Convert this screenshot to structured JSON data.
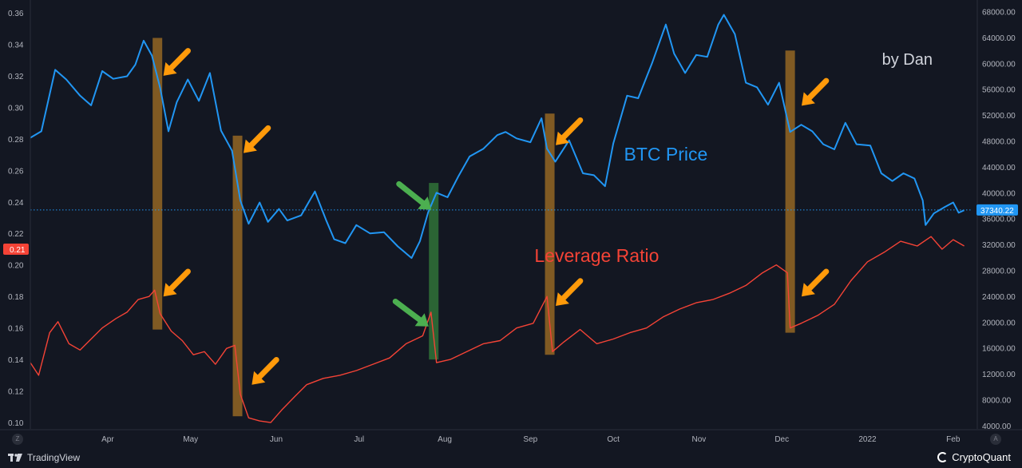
{
  "watermark": "by Dan",
  "brand_left": "TradingView",
  "brand_right": "CryptoQuant",
  "corner_left": "Z",
  "corner_right": "A",
  "colors": {
    "background": "#131722",
    "btc": "#2196f3",
    "leverage": "#f44336",
    "orange_band": "#8a6124",
    "green_band": "#2e6b36",
    "orange_arrow": "#ff9a0a",
    "green_arrow": "#4caf50",
    "axis_text": "#b2b5be",
    "crosshair": "#2196f3"
  },
  "chart_data": {
    "type": "line",
    "x_tick_labels": [
      "Apr",
      "May",
      "Jun",
      "Jul",
      "Aug",
      "Sep",
      "Oct",
      "Nov",
      "Dec",
      "2022",
      "Feb"
    ],
    "x_tick_dates": [
      "2021-04-01",
      "2021-05-01",
      "2021-06-01",
      "2021-07-01",
      "2021-08-01",
      "2021-09-01",
      "2021-10-01",
      "2021-11-01",
      "2021-12-01",
      "2022-01-01",
      "2022-02-01"
    ],
    "xlim": [
      "2021-03-04",
      "2022-02-08"
    ],
    "left_axis": {
      "ylim": [
        0.096,
        0.364
      ],
      "ticks": [
        "0.36",
        "0.34",
        "0.32",
        "0.30",
        "0.28",
        "0.26",
        "0.24",
        "0.22",
        "0.20",
        "0.18",
        "0.16",
        "0.14",
        "0.12",
        "0.10"
      ],
      "current_value_label": "0.21"
    },
    "right_axis": {
      "ylim": [
        3500,
        68800
      ],
      "ticks": [
        "68000.00",
        "64000.00",
        "60000.00",
        "56000.00",
        "52000.00",
        "48000.00",
        "44000.00",
        "40000.00",
        "36000.00",
        "32000.00",
        "28000.00",
        "24000.00",
        "20000.00",
        "16000.00",
        "12000.00",
        "8000.00",
        "4000.00"
      ],
      "current_value_label": "37340.22"
    },
    "series": [
      {
        "name": "BTC Price",
        "axis": "right",
        "points": [
          [
            "2021-03-04",
            48500
          ],
          [
            "2021-03-08",
            49500
          ],
          [
            "2021-03-13",
            59000
          ],
          [
            "2021-03-17",
            57500
          ],
          [
            "2021-03-22",
            55000
          ],
          [
            "2021-03-26",
            53500
          ],
          [
            "2021-03-30",
            58800
          ],
          [
            "2021-04-03",
            57600
          ],
          [
            "2021-04-08",
            58000
          ],
          [
            "2021-04-11",
            59800
          ],
          [
            "2021-04-14",
            63500
          ],
          [
            "2021-04-17",
            61200
          ],
          [
            "2021-04-20",
            56200
          ],
          [
            "2021-04-23",
            49500
          ],
          [
            "2021-04-26",
            54000
          ],
          [
            "2021-04-30",
            57500
          ],
          [
            "2021-05-04",
            54200
          ],
          [
            "2021-05-08",
            58500
          ],
          [
            "2021-05-12",
            49600
          ],
          [
            "2021-05-16",
            46500
          ],
          [
            "2021-05-19",
            38800
          ],
          [
            "2021-05-22",
            35200
          ],
          [
            "2021-05-26",
            38500
          ],
          [
            "2021-05-29",
            35500
          ],
          [
            "2021-06-02",
            37500
          ],
          [
            "2021-06-05",
            35700
          ],
          [
            "2021-06-10",
            36500
          ],
          [
            "2021-06-15",
            40200
          ],
          [
            "2021-06-19",
            35800
          ],
          [
            "2021-06-22",
            32800
          ],
          [
            "2021-06-26",
            32200
          ],
          [
            "2021-06-30",
            35000
          ],
          [
            "2021-07-05",
            33700
          ],
          [
            "2021-07-10",
            33900
          ],
          [
            "2021-07-15",
            31700
          ],
          [
            "2021-07-20",
            29900
          ],
          [
            "2021-07-23",
            32500
          ],
          [
            "2021-07-26",
            37000
          ],
          [
            "2021-07-29",
            40000
          ],
          [
            "2021-08-02",
            39300
          ],
          [
            "2021-08-06",
            42600
          ],
          [
            "2021-08-10",
            45600
          ],
          [
            "2021-08-15",
            46800
          ],
          [
            "2021-08-20",
            48900
          ],
          [
            "2021-08-23",
            49400
          ],
          [
            "2021-08-27",
            48400
          ],
          [
            "2021-09-01",
            47800
          ],
          [
            "2021-09-05",
            51500
          ],
          [
            "2021-09-07",
            46800
          ],
          [
            "2021-09-10",
            44800
          ],
          [
            "2021-09-15",
            48100
          ],
          [
            "2021-09-20",
            43000
          ],
          [
            "2021-09-24",
            42700
          ],
          [
            "2021-09-28",
            41000
          ],
          [
            "2021-10-01",
            47600
          ],
          [
            "2021-10-06",
            55000
          ],
          [
            "2021-10-10",
            54600
          ],
          [
            "2021-10-15",
            60000
          ],
          [
            "2021-10-20",
            66000
          ],
          [
            "2021-10-23",
            61500
          ],
          [
            "2021-10-27",
            58500
          ],
          [
            "2021-10-31",
            61300
          ],
          [
            "2021-11-04",
            61000
          ],
          [
            "2021-11-08",
            66000
          ],
          [
            "2021-11-10",
            67500
          ],
          [
            "2021-11-14",
            64500
          ],
          [
            "2021-11-18",
            57000
          ],
          [
            "2021-11-22",
            56300
          ],
          [
            "2021-11-26",
            53600
          ],
          [
            "2021-11-30",
            57000
          ],
          [
            "2021-12-04",
            49400
          ],
          [
            "2021-12-08",
            50500
          ],
          [
            "2021-12-12",
            49500
          ],
          [
            "2021-12-16",
            47500
          ],
          [
            "2021-12-20",
            46700
          ],
          [
            "2021-12-24",
            50800
          ],
          [
            "2021-12-28",
            47500
          ],
          [
            "2022-01-02",
            47300
          ],
          [
            "2022-01-06",
            43000
          ],
          [
            "2022-01-10",
            41800
          ],
          [
            "2022-01-14",
            43000
          ],
          [
            "2022-01-18",
            42200
          ],
          [
            "2022-01-21",
            38800
          ],
          [
            "2022-01-22",
            35000
          ],
          [
            "2022-01-25",
            36800
          ],
          [
            "2022-01-29",
            37800
          ],
          [
            "2022-02-01",
            38500
          ],
          [
            "2022-02-03",
            36900
          ],
          [
            "2022-02-05",
            37300
          ]
        ]
      },
      {
        "name": "Leverage Ratio",
        "axis": "left",
        "points": [
          [
            "2021-03-04",
            0.138
          ],
          [
            "2021-03-07",
            0.13
          ],
          [
            "2021-03-11",
            0.157
          ],
          [
            "2021-03-14",
            0.164
          ],
          [
            "2021-03-18",
            0.15
          ],
          [
            "2021-03-22",
            0.146
          ],
          [
            "2021-03-26",
            0.153
          ],
          [
            "2021-03-30",
            0.16
          ],
          [
            "2021-04-04",
            0.166
          ],
          [
            "2021-04-08",
            0.17
          ],
          [
            "2021-04-12",
            0.178
          ],
          [
            "2021-04-16",
            0.18
          ],
          [
            "2021-04-18",
            0.184
          ],
          [
            "2021-04-20",
            0.169
          ],
          [
            "2021-04-24",
            0.158
          ],
          [
            "2021-04-28",
            0.152
          ],
          [
            "2021-05-02",
            0.143
          ],
          [
            "2021-05-06",
            0.145
          ],
          [
            "2021-05-10",
            0.137
          ],
          [
            "2021-05-14",
            0.147
          ],
          [
            "2021-05-17",
            0.149
          ],
          [
            "2021-05-19",
            0.118
          ],
          [
            "2021-05-22",
            0.103
          ],
          [
            "2021-05-26",
            0.101
          ],
          [
            "2021-05-30",
            0.1
          ],
          [
            "2021-06-03",
            0.108
          ],
          [
            "2021-06-08",
            0.117
          ],
          [
            "2021-06-12",
            0.124
          ],
          [
            "2021-06-18",
            0.128
          ],
          [
            "2021-06-24",
            0.13
          ],
          [
            "2021-06-30",
            0.133
          ],
          [
            "2021-07-06",
            0.137
          ],
          [
            "2021-07-12",
            0.141
          ],
          [
            "2021-07-18",
            0.15
          ],
          [
            "2021-07-24",
            0.155
          ],
          [
            "2021-07-27",
            0.17
          ],
          [
            "2021-07-29",
            0.138
          ],
          [
            "2021-08-03",
            0.14
          ],
          [
            "2021-08-09",
            0.145
          ],
          [
            "2021-08-15",
            0.15
          ],
          [
            "2021-08-21",
            0.152
          ],
          [
            "2021-08-27",
            0.16
          ],
          [
            "2021-09-02",
            0.163
          ],
          [
            "2021-09-07",
            0.18
          ],
          [
            "2021-09-09",
            0.145
          ],
          [
            "2021-09-13",
            0.151
          ],
          [
            "2021-09-19",
            0.159
          ],
          [
            "2021-09-25",
            0.15
          ],
          [
            "2021-10-01",
            0.153
          ],
          [
            "2021-10-07",
            0.157
          ],
          [
            "2021-10-13",
            0.16
          ],
          [
            "2021-10-19",
            0.167
          ],
          [
            "2021-10-25",
            0.172
          ],
          [
            "2021-10-31",
            0.176
          ],
          [
            "2021-11-06",
            0.178
          ],
          [
            "2021-11-12",
            0.182
          ],
          [
            "2021-11-18",
            0.187
          ],
          [
            "2021-11-24",
            0.195
          ],
          [
            "2021-11-29",
            0.2
          ],
          [
            "2021-12-03",
            0.195
          ],
          [
            "2021-12-04",
            0.16
          ],
          [
            "2021-12-08",
            0.163
          ],
          [
            "2021-12-14",
            0.168
          ],
          [
            "2021-12-20",
            0.175
          ],
          [
            "2021-12-26",
            0.19
          ],
          [
            "2022-01-01",
            0.202
          ],
          [
            "2022-01-07",
            0.208
          ],
          [
            "2022-01-13",
            0.215
          ],
          [
            "2022-01-19",
            0.212
          ],
          [
            "2022-01-24",
            0.218
          ],
          [
            "2022-01-28",
            0.21
          ],
          [
            "2022-02-01",
            0.216
          ],
          [
            "2022-02-05",
            0.212
          ]
        ]
      }
    ],
    "highlight_bands": [
      {
        "color": "orange",
        "date": "2021-04-19",
        "ylim_left": [
          0.159,
          0.344
        ]
      },
      {
        "color": "orange",
        "date": "2021-05-18",
        "ylim_left": [
          0.104,
          0.282
        ]
      },
      {
        "color": "green",
        "date": "2021-07-28",
        "ylim_left": [
          0.14,
          0.252
        ]
      },
      {
        "color": "orange",
        "date": "2021-09-08",
        "ylim_left": [
          0.143,
          0.296
        ]
      },
      {
        "color": "orange",
        "date": "2021-12-04",
        "ylim_left": [
          0.157,
          0.336
        ]
      }
    ],
    "arrows": [
      {
        "color": "orange",
        "date": "2021-04-20",
        "left_value": 0.32,
        "target": "BTC Price"
      },
      {
        "color": "orange",
        "date": "2021-04-20",
        "left_value": 0.18,
        "target": "Leverage Ratio"
      },
      {
        "color": "orange",
        "date": "2021-05-19",
        "left_value": 0.271,
        "target": "BTC Price"
      },
      {
        "color": "orange",
        "date": "2021-05-22",
        "left_value": 0.124,
        "target": "Leverage Ratio"
      },
      {
        "color": "green",
        "date": "2021-07-26",
        "left_value": 0.235,
        "target": "BTC Price"
      },
      {
        "color": "green",
        "date": "2021-07-25",
        "left_value": 0.161,
        "target": "Leverage Ratio"
      },
      {
        "color": "orange",
        "date": "2021-09-09",
        "left_value": 0.276,
        "target": "BTC Price"
      },
      {
        "color": "orange",
        "date": "2021-09-09",
        "left_value": 0.174,
        "target": "Leverage Ratio"
      },
      {
        "color": "orange",
        "date": "2021-12-07",
        "left_value": 0.301,
        "target": "BTC Price"
      },
      {
        "color": "orange",
        "date": "2021-12-07",
        "left_value": 0.18,
        "target": "Leverage Ratio"
      }
    ],
    "annotations": [
      {
        "text": "BTC Price",
        "color": "btc",
        "date": "2021-10-20",
        "right_value": 45000
      },
      {
        "text": "Leverage Ratio",
        "color": "leverage",
        "date": "2021-09-25",
        "left_value": 0.202
      }
    ],
    "crosshair_right_value": 37340.22,
    "grid": false
  }
}
